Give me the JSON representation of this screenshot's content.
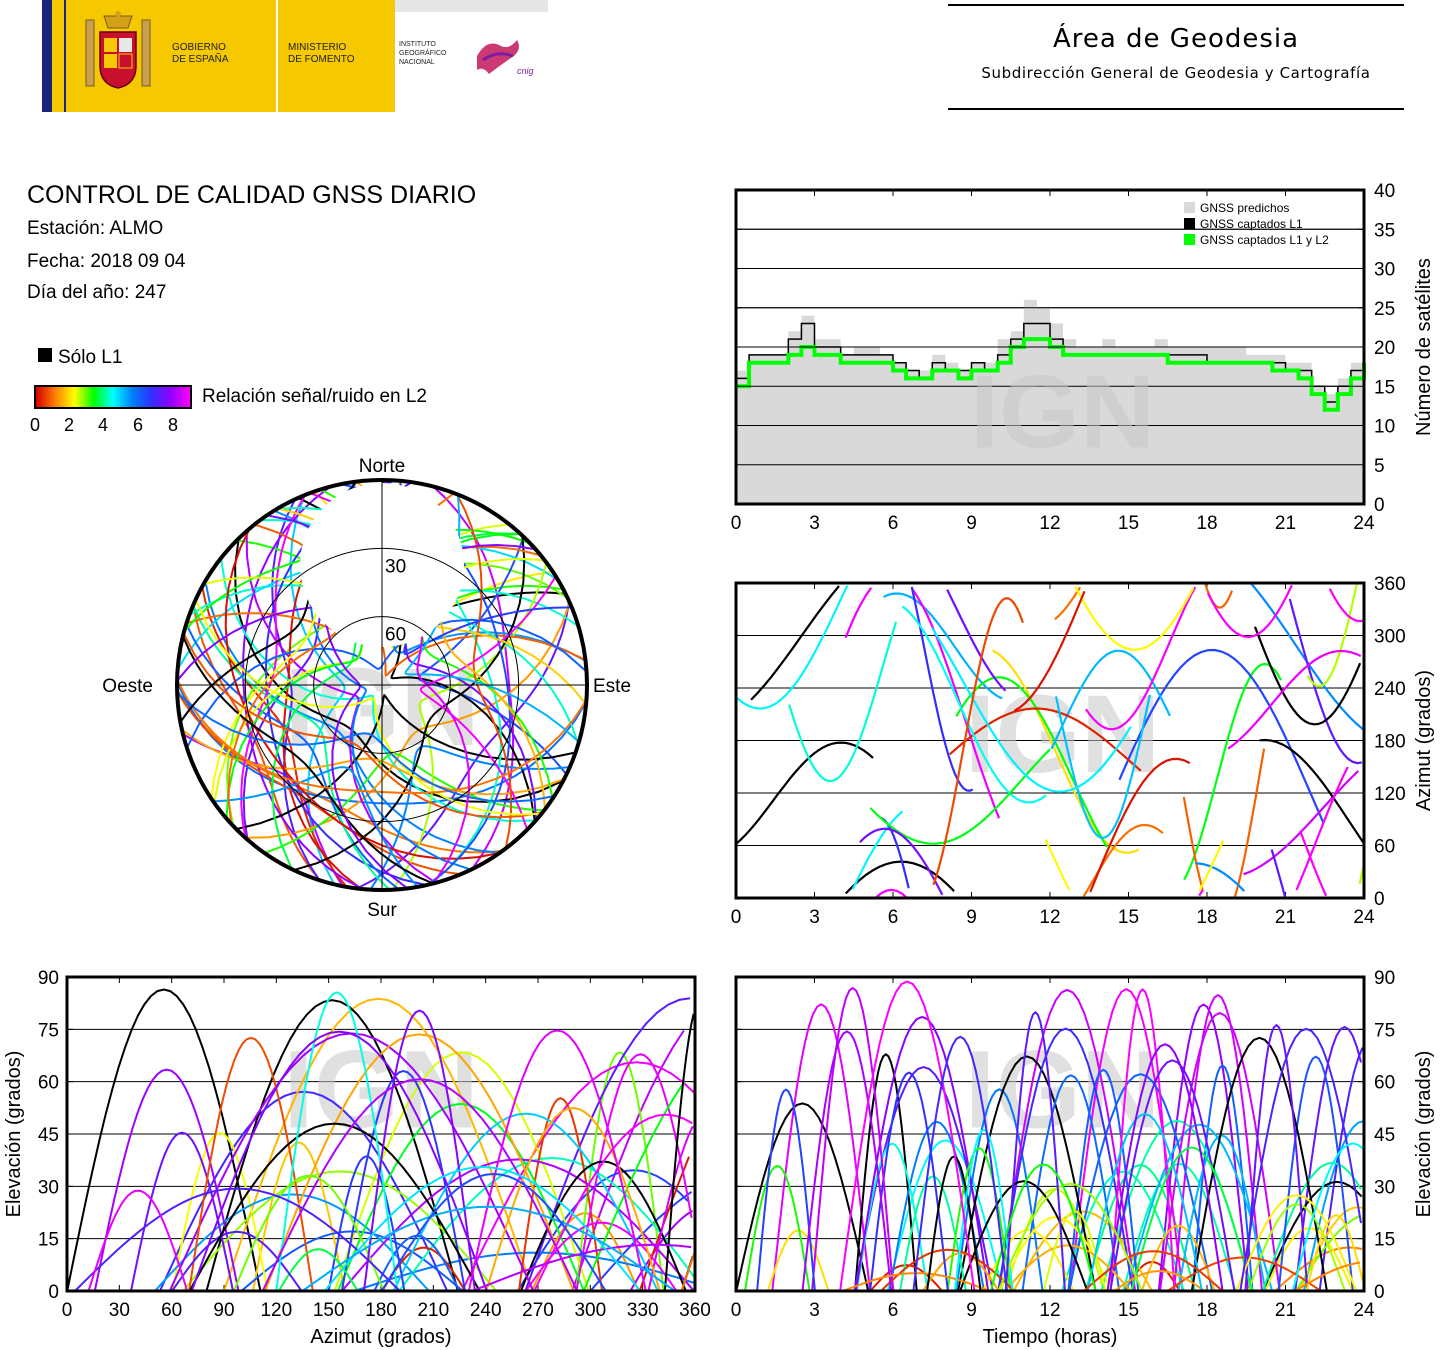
{
  "header": {
    "gov_line1": "GOBIERNO",
    "gov_line2": "DE ESPAÑA",
    "min_line1": "MINISTERIO",
    "min_line2": "DE FOMENTO",
    "ign_line1": "INSTITUTO",
    "ign_line2": "GEOGRÁFICO",
    "ign_line3": "NACIONAL",
    "cnig_logo_text": "cnig",
    "area_title": "Área de Geodesia",
    "area_subtitle": "Subdirección General de Geodesia y Cartografía"
  },
  "info": {
    "title": "CONTROL DE CALIDAD GNSS DIARIO",
    "station": "Estación: ALMO",
    "date": "Fecha: 2018 09 04",
    "doy": "Día del año: 247"
  },
  "legend": {
    "l1_only": "Sólo L1",
    "snr_label": "Relación señal/ruido en L2",
    "snr_ticks": [
      "0",
      "2",
      "4",
      "6",
      "8"
    ],
    "colors": {
      "l1_only": "#000000",
      "snr_gradient": [
        "#d40000",
        "#ff8000",
        "#ffff00",
        "#00ff00",
        "#00ffff",
        "#0080ff",
        "#3030ff",
        "#9000ff",
        "#ff00ff"
      ]
    }
  },
  "watermark": "IGN",
  "chart_data": [
    {
      "type": "line",
      "id": "satellite-count",
      "xlim": [
        0,
        24
      ],
      "ylim": [
        0,
        40
      ],
      "xticks": [
        "0",
        "3",
        "6",
        "9",
        "12",
        "15",
        "18",
        "21",
        "24"
      ],
      "yticks": [
        "0",
        "5",
        "10",
        "15",
        "20",
        "25",
        "30",
        "35",
        "40"
      ],
      "ylabel": "Número de satélites",
      "legend": [
        "GNSS predichos",
        "GNSS captados L1",
        "GNSS captados L1 y L2"
      ],
      "legend_position": "top-right",
      "grid": true,
      "x": [
        0,
        0.5,
        1,
        1.5,
        2,
        2.5,
        3,
        3.5,
        4,
        4.5,
        5,
        5.5,
        6,
        6.5,
        7,
        7.5,
        8,
        8.5,
        9,
        9.5,
        10,
        10.5,
        11,
        11.5,
        12,
        12.5,
        13,
        13.5,
        14,
        14.5,
        15,
        15.5,
        16,
        16.5,
        17,
        17.5,
        18,
        18.5,
        19,
        19.5,
        20,
        20.5,
        21,
        21.5,
        22,
        22.5,
        23,
        23.5,
        24
      ],
      "series": [
        {
          "name": "GNSS predichos",
          "color": "#d9d9d9",
          "values": [
            17,
            19,
            19,
            19,
            22,
            24,
            21,
            21,
            19,
            20,
            20,
            19,
            18,
            17,
            17,
            19,
            18,
            17,
            18,
            18,
            21,
            22,
            26,
            25,
            23,
            21,
            20,
            20,
            21,
            20,
            20,
            20,
            21,
            20,
            20,
            20,
            20,
            20,
            20,
            19,
            19,
            19,
            18,
            18,
            15,
            14,
            16,
            18,
            20
          ]
        },
        {
          "name": "GNSS captados L1",
          "color": "#000000",
          "values": [
            16,
            19,
            19,
            19,
            21,
            23,
            20,
            20,
            19,
            19,
            19,
            19,
            18,
            17,
            16,
            18,
            17,
            17,
            18,
            17,
            19,
            21,
            23,
            23,
            21,
            19,
            19,
            19,
            19,
            19,
            19,
            19,
            19,
            19,
            19,
            19,
            18,
            18,
            18,
            18,
            18,
            18,
            17,
            17,
            15,
            13,
            15,
            17,
            20
          ]
        },
        {
          "name": "GNSS captados L1 y L2",
          "color": "#00ff00",
          "values": [
            15,
            18,
            18,
            18,
            19,
            20,
            19,
            19,
            18,
            18,
            18,
            18,
            17,
            16,
            16,
            17,
            17,
            16,
            17,
            17,
            18,
            20,
            21,
            21,
            20,
            19,
            19,
            19,
            19,
            19,
            19,
            19,
            19,
            18,
            18,
            18,
            18,
            18,
            18,
            18,
            18,
            17,
            17,
            16,
            14,
            12,
            14,
            16,
            18
          ]
        }
      ]
    },
    {
      "type": "scatter",
      "id": "azimuth-vs-time",
      "xlim": [
        0,
        24
      ],
      "ylim": [
        0,
        360
      ],
      "xticks": [
        "0",
        "3",
        "6",
        "9",
        "12",
        "15",
        "18",
        "21",
        "24"
      ],
      "yticks": [
        "0",
        "60",
        "120",
        "180",
        "240",
        "300",
        "360"
      ],
      "ylabel": "Azimut (grados)",
      "grid": true
    },
    {
      "type": "scatter",
      "id": "skyplot",
      "projection": "polar",
      "rings": [
        "30",
        "60"
      ],
      "directions": {
        "north": "Norte",
        "south": "Sur",
        "east": "Este",
        "west": "Oeste"
      }
    },
    {
      "type": "scatter",
      "id": "elevation-vs-azimuth",
      "xlim": [
        0,
        360
      ],
      "ylim": [
        0,
        90
      ],
      "xticks": [
        "0",
        "30",
        "60",
        "90",
        "120",
        "150",
        "180",
        "210",
        "240",
        "270",
        "300",
        "330",
        "360"
      ],
      "yticks": [
        "0",
        "15",
        "30",
        "45",
        "60",
        "75",
        "90"
      ],
      "xlabel": "Azimut (grados)",
      "ylabel": "Elevación (grados)",
      "grid": true
    },
    {
      "type": "scatter",
      "id": "elevation-vs-time",
      "xlim": [
        0,
        24
      ],
      "ylim": [
        0,
        90
      ],
      "xticks": [
        "0",
        "3",
        "6",
        "9",
        "12",
        "15",
        "18",
        "21",
        "24"
      ],
      "yticks": [
        "0",
        "15",
        "30",
        "45",
        "60",
        "75",
        "90"
      ],
      "xlabel": "Tiempo (horas)",
      "ylabel": "Elevación (grados)",
      "grid": true
    }
  ]
}
